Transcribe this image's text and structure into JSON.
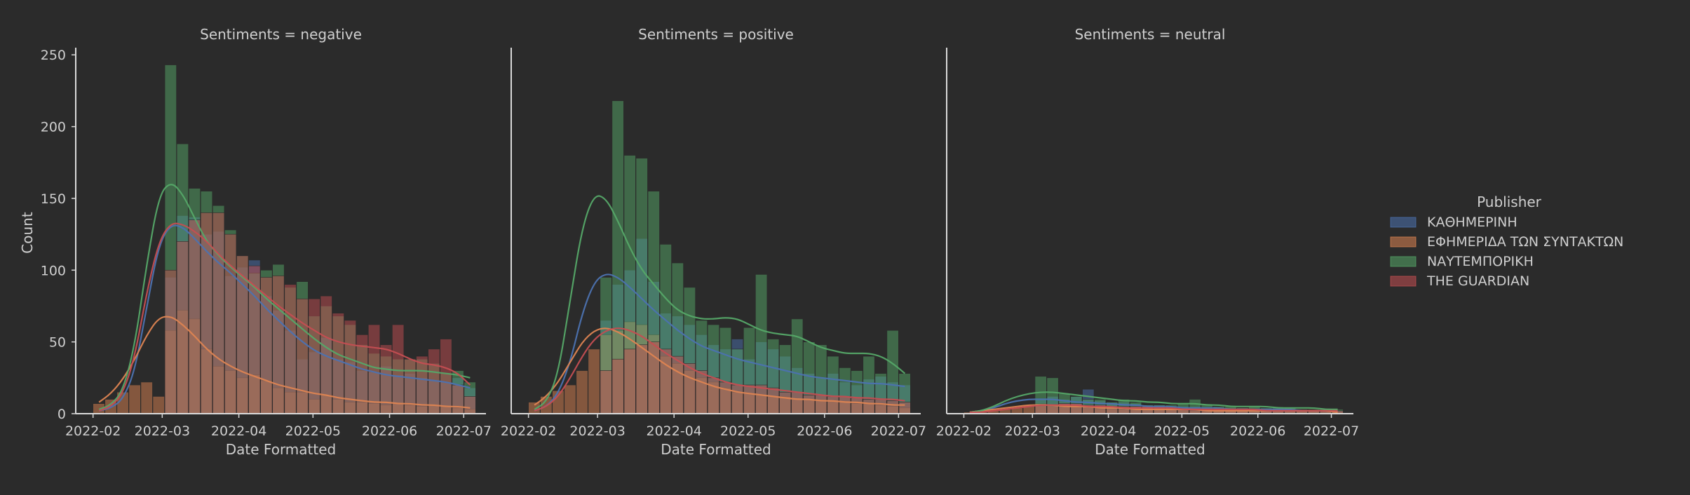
{
  "chart_data": {
    "type": "bar",
    "subtype": "faceted stacked histogram with KDE curves",
    "panels": [
      {
        "title": "Sentiments = negative",
        "ylabel": "Count",
        "xlabel": "Date Formatted",
        "x_ticks": [
          "2022-02",
          "2022-03",
          "2022-04",
          "2022-05",
          "2022-06",
          "2022-07"
        ],
        "y_ticks": [
          "0",
          "50",
          "100",
          "150",
          "200",
          "250"
        ],
        "bins": {
          "Καθημερινη": [
            0,
            0,
            0,
            0,
            0,
            0,
            95,
            138,
            137,
            125,
            127,
            96,
            102,
            107,
            82,
            72,
            58,
            38,
            43,
            53,
            38,
            36,
            30,
            29,
            33,
            27,
            28,
            25,
            23,
            22,
            25,
            18
          ],
          "Εφημεριδα των Συντακτων": [
            7,
            10,
            15,
            20,
            22,
            12,
            58,
            72,
            66,
            45,
            33,
            30,
            25,
            27,
            23,
            18,
            15,
            15,
            10,
            13,
            10,
            8,
            8,
            7,
            6,
            7,
            6,
            5,
            6,
            5,
            4,
            3
          ],
          "Ναυτεμπορικη": [
            0,
            0,
            0,
            0,
            0,
            0,
            243,
            188,
            157,
            155,
            145,
            128,
            110,
            98,
            100,
            104,
            88,
            92,
            68,
            75,
            68,
            62,
            48,
            42,
            40,
            38,
            38,
            38,
            35,
            28,
            30,
            22
          ],
          "The Guardian": [
            0,
            0,
            0,
            0,
            0,
            0,
            100,
            120,
            135,
            140,
            140,
            125,
            110,
            103,
            95,
            96,
            90,
            80,
            80,
            82,
            70,
            65,
            55,
            62,
            48,
            62,
            38,
            40,
            45,
            52,
            20,
            12
          ]
        },
        "kde": {
          "Καθημερινη": [
            2,
            4,
            10,
            30,
            75,
            118,
            132,
            130,
            122,
            113,
            105,
            98,
            90,
            82,
            73,
            65,
            57,
            50,
            44,
            40,
            37,
            34,
            31,
            29,
            27,
            26,
            25,
            24,
            23,
            22,
            20,
            18
          ],
          "Εφημεριδα των Συντακτων": [
            8,
            14,
            24,
            38,
            55,
            67,
            68,
            62,
            54,
            45,
            38,
            33,
            29,
            26,
            23,
            20,
            18,
            16,
            14,
            13,
            11,
            10,
            9,
            8,
            8,
            7,
            7,
            6,
            6,
            5,
            5,
            4
          ],
          "Ναυτεμπορικη": [
            3,
            6,
            16,
            48,
            105,
            152,
            162,
            153,
            136,
            120,
            110,
            102,
            95,
            88,
            80,
            73,
            66,
            59,
            52,
            46,
            41,
            38,
            35,
            32,
            31,
            30,
            30,
            30,
            29,
            28,
            27,
            25
          ],
          "The Guardian": [
            2,
            5,
            14,
            40,
            85,
            120,
            133,
            132,
            127,
            120,
            111,
            103,
            96,
            89,
            82,
            75,
            69,
            63,
            58,
            53,
            50,
            48,
            47,
            46,
            45,
            42,
            38,
            35,
            34,
            32,
            28,
            20
          ]
        }
      },
      {
        "title": "Sentiments = positive",
        "ylabel": "",
        "xlabel": "Date Formatted",
        "x_ticks": [
          "2022-02",
          "2022-03",
          "2022-04",
          "2022-05",
          "2022-06",
          "2022-07"
        ],
        "y_ticks": [],
        "bins": {
          "Καθημερινη": [
            0,
            0,
            0,
            0,
            0,
            0,
            65,
            90,
            100,
            122,
            92,
            70,
            68,
            62,
            55,
            48,
            45,
            52,
            38,
            50,
            45,
            40,
            32,
            28,
            25,
            28,
            22,
            20,
            24,
            26,
            22,
            20
          ],
          "Εφημεριδα των Συντακτων": [
            8,
            12,
            16,
            20,
            30,
            45,
            55,
            58,
            64,
            62,
            55,
            40,
            35,
            30,
            25,
            22,
            18,
            15,
            14,
            13,
            12,
            12,
            10,
            10,
            9,
            9,
            8,
            7,
            7,
            6,
            5,
            4
          ],
          "Ναυτεμπορικη": [
            0,
            0,
            0,
            0,
            0,
            0,
            95,
            218,
            180,
            178,
            155,
            118,
            105,
            88,
            65,
            62,
            60,
            45,
            60,
            97,
            52,
            48,
            66,
            50,
            48,
            40,
            32,
            30,
            40,
            28,
            58,
            28
          ],
          "The Guardian": [
            0,
            0,
            0,
            0,
            0,
            0,
            30,
            38,
            45,
            48,
            50,
            45,
            40,
            35,
            30,
            25,
            22,
            20,
            20,
            20,
            18,
            15,
            15,
            13,
            13,
            12,
            12,
            11,
            10,
            10,
            9,
            8
          ]
        },
        "kde": {
          "Καθημερινη": [
            2,
            5,
            14,
            36,
            70,
            92,
            98,
            95,
            88,
            80,
            72,
            65,
            58,
            52,
            47,
            44,
            41,
            38,
            36,
            34,
            32,
            30,
            28,
            26,
            25,
            24,
            23,
            22,
            21,
            21,
            20,
            19
          ],
          "Εφημεριδα των Συντακτων": [
            6,
            12,
            22,
            36,
            50,
            58,
            60,
            57,
            52,
            46,
            40,
            34,
            29,
            25,
            22,
            19,
            17,
            15,
            14,
            13,
            12,
            11,
            10,
            10,
            9,
            9,
            8,
            8,
            7,
            7,
            6,
            6
          ],
          "Ναυτεμπορικη": [
            3,
            8,
            28,
            80,
            130,
            153,
            150,
            134,
            115,
            100,
            90,
            80,
            72,
            68,
            66,
            66,
            67,
            66,
            62,
            58,
            56,
            55,
            54,
            50,
            46,
            44,
            42,
            42,
            42,
            40,
            35,
            28
          ],
          "The Guardian": [
            2,
            5,
            12,
            25,
            40,
            52,
            58,
            60,
            58,
            54,
            48,
            42,
            37,
            32,
            28,
            25,
            22,
            20,
            19,
            18,
            17,
            16,
            15,
            14,
            13,
            12,
            12,
            11,
            11,
            10,
            10,
            9
          ]
        }
      },
      {
        "title": "Sentiments = neutral",
        "ylabel": "",
        "xlabel": "Date Formatted",
        "x_ticks": [
          "2022-02",
          "2022-03",
          "2022-04",
          "2022-05",
          "2022-06",
          "2022-07"
        ],
        "y_ticks": [],
        "bins": {
          "Καθημερινη": [
            0,
            0,
            0,
            0,
            0,
            0,
            10,
            12,
            10,
            12,
            17,
            9,
            8,
            8,
            7,
            6,
            6,
            5,
            5,
            5,
            4,
            4,
            4,
            4,
            3,
            3,
            3,
            3,
            3,
            2,
            2,
            2
          ],
          "Εφημεριδα των Συντακτων": [
            1,
            1,
            2,
            3,
            4,
            6,
            7,
            6,
            6,
            5,
            5,
            4,
            4,
            4,
            3,
            3,
            3,
            3,
            3,
            2,
            2,
            2,
            2,
            2,
            2,
            2,
            2,
            2,
            2,
            2,
            1,
            1
          ],
          "Ναυτεμπορικη": [
            0,
            0,
            0,
            0,
            0,
            0,
            26,
            25,
            14,
            12,
            10,
            10,
            8,
            10,
            8,
            6,
            6,
            6,
            7,
            10,
            6,
            5,
            5,
            4,
            5,
            4,
            4,
            4,
            3,
            3,
            3,
            3
          ],
          "The Guardian": [
            0,
            0,
            0,
            0,
            0,
            0,
            6,
            6,
            7,
            7,
            6,
            6,
            5,
            5,
            5,
            5,
            4,
            4,
            4,
            4,
            3,
            3,
            3,
            3,
            3,
            3,
            2,
            2,
            2,
            2,
            2,
            2
          ]
        },
        "kde": {
          "Καθημερινη": [
            1,
            2,
            4,
            7,
            9,
            10,
            10,
            10,
            9,
            8,
            8,
            7,
            7,
            6,
            6,
            5,
            5,
            5,
            4,
            4,
            4,
            4,
            3,
            3,
            3,
            3,
            3,
            3,
            2,
            2,
            2,
            2
          ],
          "Εφημεριδα των Συντακτων": [
            1,
            2,
            3,
            4,
            5,
            6,
            6,
            6,
            5,
            5,
            5,
            4,
            4,
            4,
            3,
            3,
            3,
            3,
            3,
            3,
            2,
            2,
            2,
            2,
            2,
            2,
            2,
            2,
            2,
            2,
            2,
            1
          ],
          "Ναυτεμπορικη": [
            1,
            2,
            5,
            9,
            12,
            14,
            15,
            15,
            14,
            13,
            12,
            11,
            10,
            9,
            9,
            8,
            8,
            7,
            7,
            7,
            6,
            6,
            5,
            5,
            5,
            5,
            4,
            4,
            4,
            4,
            3,
            3
          ],
          "The Guardian": [
            1,
            1,
            2,
            3,
            4,
            5,
            6,
            6,
            6,
            6,
            5,
            5,
            5,
            4,
            4,
            4,
            4,
            4,
            3,
            3,
            3,
            3,
            3,
            3,
            3,
            2,
            2,
            2,
            2,
            2,
            2,
            2
          ]
        }
      }
    ],
    "x_range": [
      "2022-01-25",
      "2022-07-10"
    ],
    "ylim": [
      0,
      255
    ],
    "bin_start": "2022-02-01",
    "bin_end": "2022-07-06",
    "legend": {
      "title": "Publisher",
      "placement": "right",
      "entries": [
        {
          "name": "ΚΑΘΗΜΕΡΙΝΗ",
          "key": "Καθημερινη",
          "color": "#4c72b0"
        },
        {
          "name": "ΕΦΗΜΕΡΙΔΑ ΤΩΝ ΣΥΝΤΑΚΤΩΝ",
          "key": "Εφημεριδα των Συντακτων",
          "color": "#dd8452"
        },
        {
          "name": "ΝΑΥΤΕΜΠΟΡΙΚΗ",
          "key": "Ναυτεμπορικη",
          "color": "#55a868"
        },
        {
          "name": "THE GUARDIAN",
          "key": "The Guardian",
          "color": "#c44e52"
        }
      ]
    },
    "grid": false
  }
}
